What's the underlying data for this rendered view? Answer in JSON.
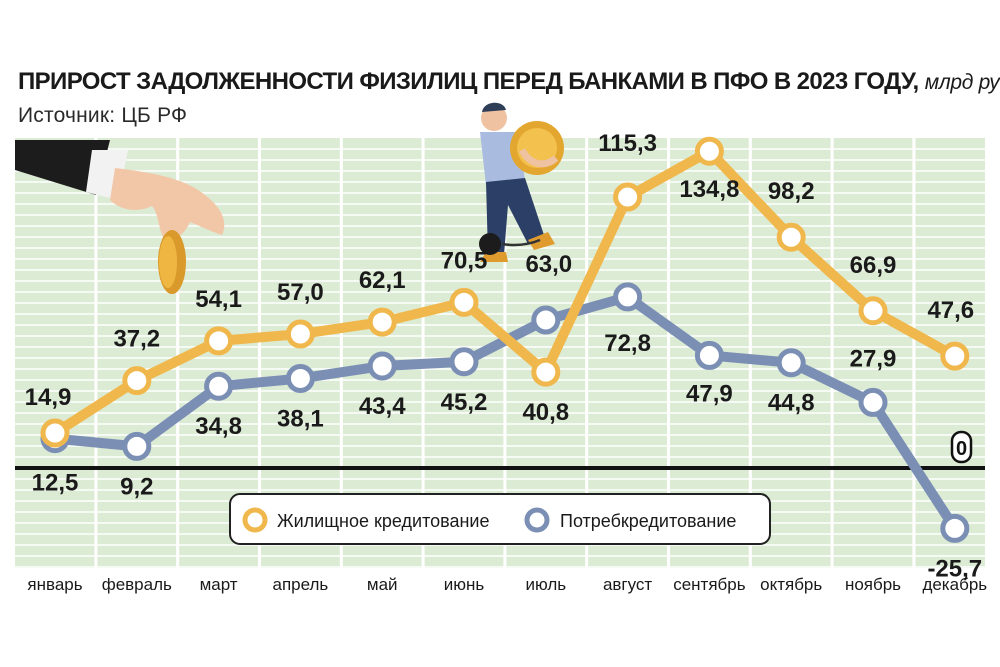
{
  "header": {
    "title": "ПРИРОСТ ЗАДОЛЖЕННОСТИ ФИЗИЛИЦ ПЕРЕД БАНКАМИ В ПФО В 2023 ГОДУ,",
    "unit": "млрд руб.",
    "source": "Источник: ЦБ РФ"
  },
  "chart_data": {
    "type": "line",
    "categories": [
      "январь",
      "февраль",
      "март",
      "апрель",
      "май",
      "июнь",
      "июль",
      "август",
      "сентябрь",
      "октябрь",
      "ноябрь",
      "декабрь"
    ],
    "series": [
      {
        "name": "Жилищное кредитование",
        "color": "#f0b84c",
        "values": [
          14.9,
          37.2,
          54.1,
          57.0,
          62.1,
          70.5,
          40.8,
          115.3,
          134.8,
          98.2,
          66.9,
          47.6
        ],
        "labels": [
          "14,9",
          "37,2",
          "54,1",
          "57,0",
          "62,1",
          "70,5",
          "40,8",
          "115,3",
          "134,8",
          "98,2",
          "66,9",
          "47,6"
        ]
      },
      {
        "name": "Потребкредитование",
        "color": "#7b8fb5",
        "values": [
          12.5,
          9.2,
          34.8,
          38.1,
          43.4,
          45.2,
          63.0,
          72.8,
          47.9,
          44.8,
          27.9,
          -25.7
        ],
        "labels": [
          "12,5",
          "9,2",
          "34,8",
          "38,1",
          "43,4",
          "45,2",
          "63,0",
          "72,8",
          "47,9",
          "44,8",
          "27,9",
          "-25,7"
        ]
      }
    ],
    "zero_label": "0",
    "grid": true,
    "legend": "bottom-center"
  },
  "colors": {
    "grid_bg": "#dcebd4",
    "grid_line": "#ffffff",
    "zero_line": "#111111"
  }
}
